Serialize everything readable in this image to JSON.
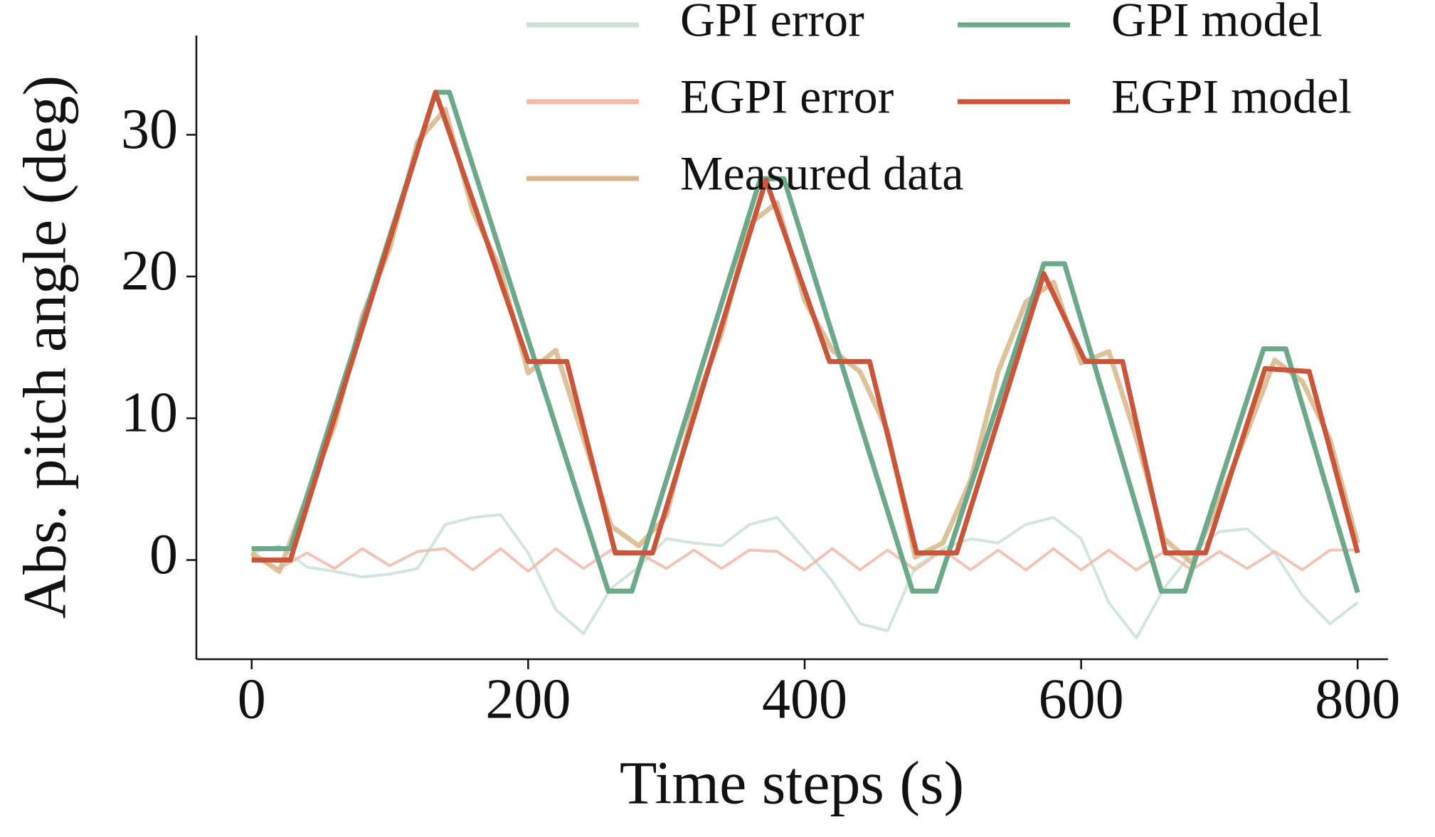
{
  "chart_data": {
    "type": "line",
    "xlabel": "Time steps (s)",
    "ylabel": "Abs. pitch angle (deg)",
    "xlim": [
      -40,
      822
    ],
    "ylim": [
      -7,
      37
    ],
    "xticks": [
      0,
      200,
      400,
      600,
      800
    ],
    "yticks": [
      0,
      10,
      20,
      30
    ],
    "legend": "upper right",
    "legend_columns": 2,
    "grid": false,
    "series": [
      {
        "name": "GPI error",
        "color": "#c9e0d5",
        "x": [
          0,
          20,
          40,
          60,
          80,
          100,
          120,
          140,
          160,
          180,
          200,
          220,
          240,
          260,
          280,
          300,
          320,
          340,
          360,
          380,
          400,
          420,
          440,
          460,
          480,
          500,
          520,
          540,
          560,
          580,
          600,
          620,
          640,
          660,
          680,
          700,
          720,
          740,
          760,
          780,
          800
        ],
        "values": [
          0.5,
          1.0,
          -0.5,
          -0.8,
          -1.2,
          -1.0,
          -0.6,
          2.5,
          3.0,
          3.2,
          0.5,
          -3.5,
          -5.2,
          -2.0,
          -0.5,
          1.5,
          1.2,
          1.0,
          2.5,
          3.0,
          0.8,
          -1.5,
          -4.5,
          -5.0,
          -0.5,
          0.8,
          1.5,
          1.2,
          2.5,
          3.0,
          1.5,
          -3.0,
          -5.5,
          -2.0,
          0.5,
          2.0,
          2.2,
          0.5,
          -2.5,
          -4.5,
          -3.0
        ]
      },
      {
        "name": "EGPI error",
        "color": "#f0b9aa",
        "x": [
          0,
          20,
          40,
          60,
          80,
          100,
          120,
          140,
          160,
          180,
          200,
          220,
          240,
          260,
          280,
          300,
          320,
          340,
          360,
          380,
          400,
          420,
          440,
          460,
          480,
          500,
          520,
          540,
          560,
          580,
          600,
          620,
          640,
          660,
          680,
          700,
          720,
          740,
          760,
          780,
          800
        ],
        "values": [
          0.3,
          -0.6,
          0.5,
          -0.6,
          0.8,
          -0.4,
          0.6,
          0.8,
          -0.7,
          0.8,
          -0.8,
          0.8,
          -0.6,
          0.7,
          0.5,
          -0.6,
          0.7,
          -0.6,
          0.7,
          0.6,
          -0.7,
          0.8,
          -0.7,
          0.7,
          -0.7,
          0.7,
          -0.7,
          0.7,
          -0.7,
          0.8,
          -0.7,
          0.7,
          -0.7,
          0.6,
          -0.7,
          0.6,
          -0.6,
          0.6,
          -0.7,
          0.7,
          0.7
        ]
      },
      {
        "name": "Measured data",
        "color": "#d6b68a",
        "x": [
          0,
          20,
          40,
          60,
          80,
          100,
          120,
          140,
          160,
          180,
          200,
          220,
          240,
          260,
          280,
          300,
          320,
          340,
          360,
          380,
          400,
          420,
          440,
          460,
          480,
          500,
          520,
          540,
          560,
          580,
          600,
          620,
          640,
          660,
          680,
          700,
          720,
          740,
          760,
          780,
          800
        ],
        "values": [
          0.5,
          -0.8,
          4.5,
          9.5,
          17.2,
          22.0,
          29.5,
          31.8,
          24.6,
          20.5,
          13.2,
          14.8,
          8.6,
          2.4,
          1.0,
          3.1,
          10.8,
          16.0,
          23.7,
          25.2,
          18.3,
          14.8,
          13.3,
          9.1,
          0.2,
          1.2,
          5.6,
          13.3,
          18.2,
          19.6,
          13.9,
          14.7,
          8.6,
          1.5,
          -0.2,
          4.2,
          9.0,
          14.1,
          12.6,
          8.5,
          1.2
        ]
      },
      {
        "name": "GPI model",
        "color": "#6ea88b",
        "x": [
          0,
          28,
          133,
          143,
          258,
          275,
          368,
          385,
          478,
          495,
          573,
          588,
          658,
          675,
          732,
          748,
          800
        ],
        "values": [
          0.8,
          0.8,
          33,
          33,
          -2.2,
          -2.2,
          26.9,
          26.9,
          -2.2,
          -2.2,
          20.9,
          20.9,
          -2.2,
          -2.2,
          14.9,
          14.9,
          -2.3
        ]
      },
      {
        "name": "EGPI model",
        "color": "#c9553a",
        "x": [
          0,
          28,
          133,
          200,
          228,
          263,
          290,
          372,
          418,
          447,
          481,
          510,
          573,
          603,
          630,
          661,
          690,
          733,
          765,
          800
        ],
        "values": [
          0,
          0,
          33,
          14,
          14,
          0.5,
          0.5,
          26.8,
          14,
          14,
          0.5,
          0.5,
          20.2,
          14,
          14,
          0.5,
          0.5,
          13.5,
          13.3,
          0.5
        ]
      }
    ]
  }
}
